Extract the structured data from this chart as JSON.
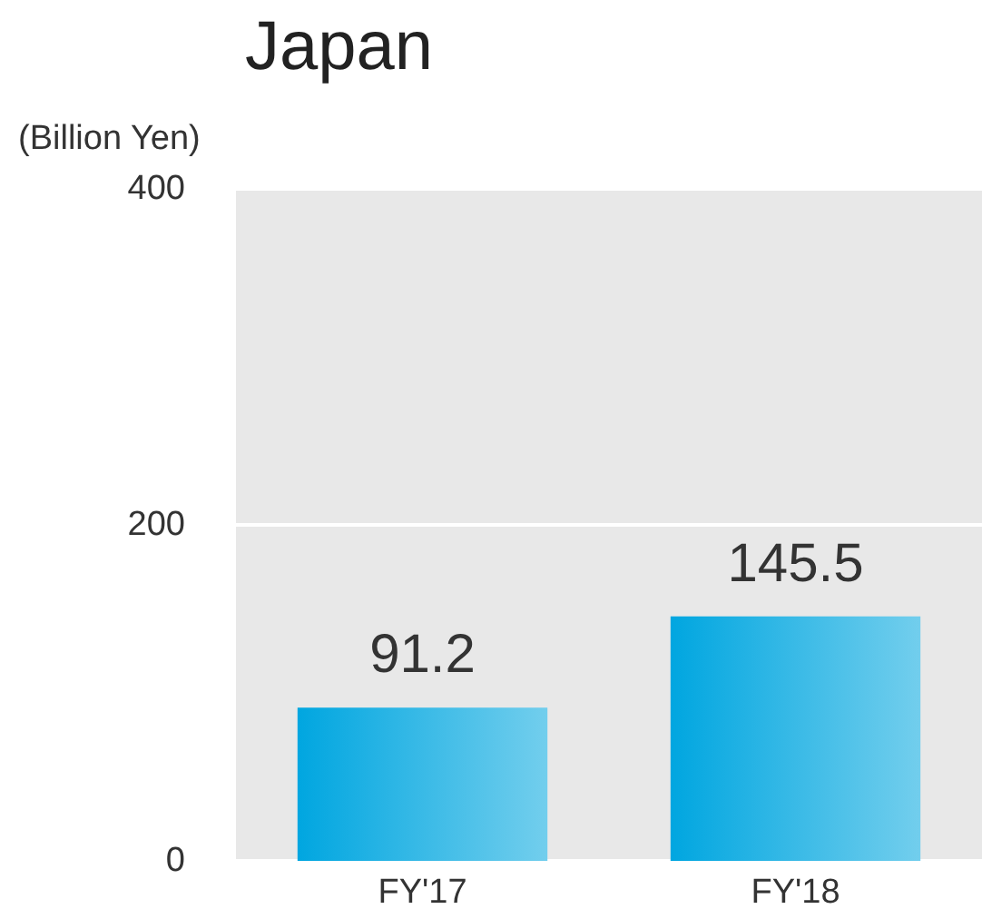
{
  "chart_data": {
    "type": "bar",
    "title": "Japan",
    "ylabel": "(Billion Yen)",
    "categories": [
      "FY'17",
      "FY'18"
    ],
    "values": [
      91.2,
      145.5
    ],
    "color": "#00a6e0",
    "ylim": [
      0,
      400
    ],
    "yticks": [
      0,
      200,
      400
    ],
    "grid": "y",
    "data_labels": true
  }
}
